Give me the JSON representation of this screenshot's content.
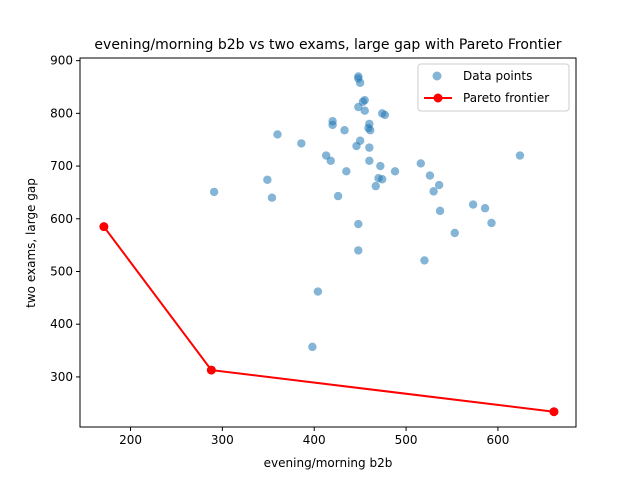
{
  "chart_data": {
    "type": "scatter",
    "title": "evening/morning b2b vs two exams, large gap with Pareto Frontier",
    "xlabel": "evening/morning b2b",
    "ylabel": "two exams, large gap",
    "xlim": [
      145,
      685
    ],
    "ylim": [
      205,
      905
    ],
    "xticks": [
      200,
      300,
      400,
      500,
      600
    ],
    "yticks": [
      300,
      400,
      500,
      600,
      700,
      800,
      900
    ],
    "grid": false,
    "legend_position": "top-right",
    "colors": {
      "points": "#1f77b4",
      "frontier": "#ff0000"
    },
    "series": [
      {
        "name": "Data points",
        "kind": "scatter",
        "points": [
          [
            448,
            870
          ],
          [
            448,
            866
          ],
          [
            450,
            858
          ],
          [
            455,
            825
          ],
          [
            453,
            822
          ],
          [
            448,
            812
          ],
          [
            455,
            805
          ],
          [
            460,
            780
          ],
          [
            459,
            772
          ],
          [
            461,
            768
          ],
          [
            420,
            785
          ],
          [
            420,
            778
          ],
          [
            433,
            768
          ],
          [
            360,
            760
          ],
          [
            474,
            800
          ],
          [
            477,
            797
          ],
          [
            386,
            743
          ],
          [
            446,
            738
          ],
          [
            450,
            748
          ],
          [
            460,
            735
          ],
          [
            413,
            720
          ],
          [
            418,
            710
          ],
          [
            460,
            710
          ],
          [
            435,
            690
          ],
          [
            472,
            700
          ],
          [
            488,
            690
          ],
          [
            470,
            677
          ],
          [
            474,
            675
          ],
          [
            467,
            662
          ],
          [
            426,
            643
          ],
          [
            516,
            705
          ],
          [
            526,
            682
          ],
          [
            530,
            652
          ],
          [
            536,
            664
          ],
          [
            537,
            615
          ],
          [
            553,
            573
          ],
          [
            573,
            627
          ],
          [
            586,
            620
          ],
          [
            593,
            592
          ],
          [
            624,
            720
          ],
          [
            349,
            674
          ],
          [
            354,
            640
          ],
          [
            291,
            651
          ],
          [
            448,
            590
          ],
          [
            448,
            540
          ],
          [
            520,
            521
          ],
          [
            404,
            462
          ],
          [
            398,
            357
          ]
        ]
      },
      {
        "name": "Pareto frontier",
        "kind": "line",
        "points": [
          [
            171,
            585
          ],
          [
            288,
            313
          ],
          [
            661,
            234
          ]
        ]
      }
    ]
  }
}
